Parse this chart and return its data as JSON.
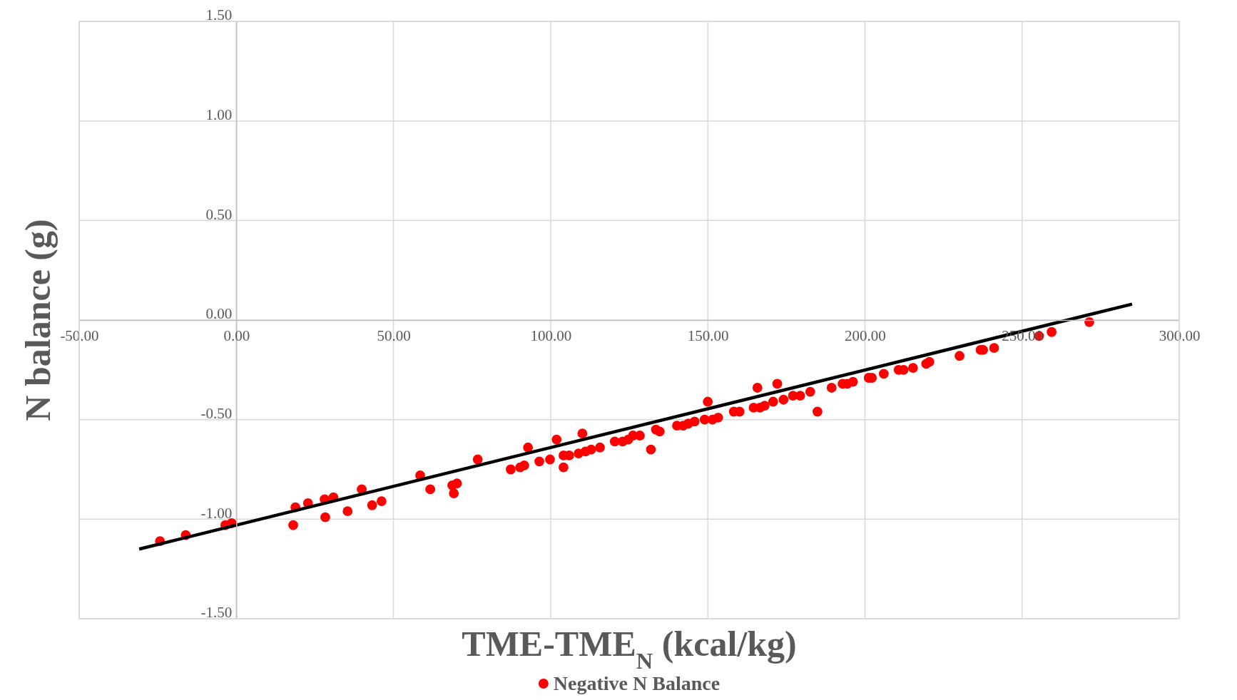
{
  "chart_data": {
    "type": "scatter",
    "xlabel": "TME-TME$_{N}$ (kcal/kg)",
    "ylabel": "N balance (g)",
    "xlim": [
      -50,
      300
    ],
    "ylim": [
      -1.5,
      1.5
    ],
    "xticks": [
      {
        "value": -50,
        "label": "-50.00"
      },
      {
        "value": 0,
        "label": "0.00"
      },
      {
        "value": 50,
        "label": "50.00"
      },
      {
        "value": 100,
        "label": "100.00"
      },
      {
        "value": 150,
        "label": "150.00"
      },
      {
        "value": 200,
        "label": "200.00"
      },
      {
        "value": 250,
        "label": "250.00"
      },
      {
        "value": 300,
        "label": "300.00"
      }
    ],
    "yticks": [
      {
        "value": -1.5,
        "label": "-1.50"
      },
      {
        "value": -1,
        "label": "-1.00"
      },
      {
        "value": -0.5,
        "label": "-0.50"
      },
      {
        "value": 0,
        "label": "0.00"
      },
      {
        "value": 0.5,
        "label": "0.50"
      },
      {
        "value": 1,
        "label": "1.00"
      },
      {
        "value": 1.5,
        "label": "1.50"
      }
    ],
    "grid": true,
    "legend": "bottom",
    "marker": "circle",
    "series": [
      {
        "name": "Negative N Balance",
        "color": "#ff0000",
        "x": [
          -24.3,
          -16.1,
          -3.5,
          -1.5,
          18.1,
          18.8,
          22.8,
          28.1,
          28.3,
          30.9,
          35.4,
          39.9,
          43.2,
          46.2,
          58.5,
          61.7,
          68.7,
          69.2,
          70.2,
          76.8,
          87.3,
          90.3,
          91.6,
          92.8,
          96.4,
          99.8,
          101.9,
          104.1,
          104.1,
          105.9,
          108.9,
          110.1,
          111.1,
          112.9,
          115.7,
          120.4,
          122.9,
          124.7,
          126.2,
          128.4,
          131.9,
          133.5,
          134.7,
          140.2,
          142.2,
          143.8,
          145.8,
          149.0,
          150.0,
          151.5,
          153.3,
          158.3,
          160.1,
          164.6,
          165.8,
          166.6,
          168.1,
          170.8,
          172.1,
          174.1,
          177.1,
          179.4,
          182.6,
          184.9,
          189.4,
          192.9,
          194.4,
          196.2,
          201.2,
          202.2,
          206.0,
          210.7,
          212.3,
          215.3,
          219.5,
          220.5,
          230.1,
          236.8,
          237.6,
          241.1,
          255.4,
          259.4,
          271.4
        ],
        "values": [
          -1.11,
          -1.08,
          -1.03,
          -1.02,
          -1.03,
          -0.94,
          -0.92,
          -0.9,
          -0.99,
          -0.89,
          -0.96,
          -0.85,
          -0.93,
          -0.91,
          -0.78,
          -0.85,
          -0.83,
          -0.87,
          -0.82,
          -0.7,
          -0.75,
          -0.74,
          -0.73,
          -0.64,
          -0.71,
          -0.7,
          -0.6,
          -0.74,
          -0.68,
          -0.68,
          -0.67,
          -0.57,
          -0.66,
          -0.65,
          -0.64,
          -0.61,
          -0.61,
          -0.6,
          -0.58,
          -0.58,
          -0.65,
          -0.55,
          -0.56,
          -0.53,
          -0.53,
          -0.52,
          -0.51,
          -0.5,
          -0.41,
          -0.5,
          -0.49,
          -0.46,
          -0.46,
          -0.44,
          -0.34,
          -0.44,
          -0.43,
          -0.41,
          -0.32,
          -0.4,
          -0.38,
          -0.38,
          -0.36,
          -0.46,
          -0.34,
          -0.32,
          -0.32,
          -0.31,
          -0.29,
          -0.29,
          -0.27,
          -0.25,
          -0.25,
          -0.24,
          -0.22,
          -0.21,
          -0.18,
          -0.15,
          -0.15,
          -0.14,
          -0.08,
          -0.06,
          -0.01
        ]
      },
      {
        "color": "#000000",
        "type": "line",
        "marker": "none",
        "line_style": "solid",
        "x": [
          -30.9,
          285.0
        ],
        "values": [
          -1.15,
          0.08
        ]
      }
    ]
  }
}
